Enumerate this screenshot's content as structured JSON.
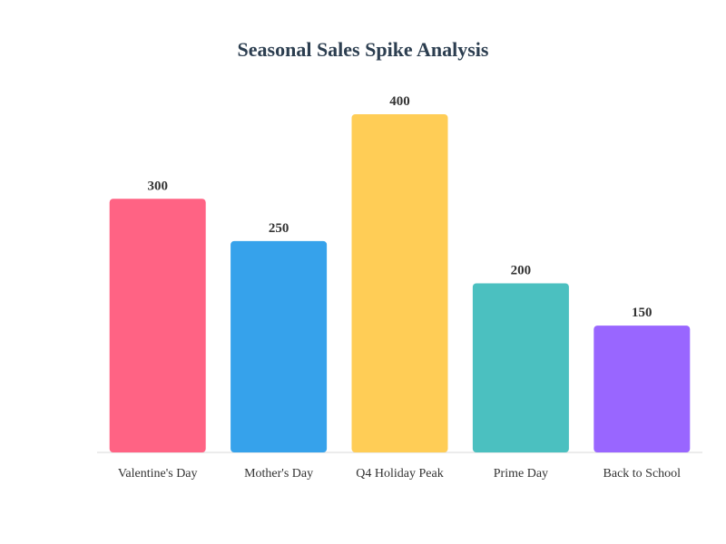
{
  "chart_data": {
    "type": "bar",
    "title": "Seasonal Sales Spike Analysis",
    "categories": [
      "Valentine's Day",
      "Mother's Day",
      "Q4 Holiday Peak",
      "Prime Day",
      "Back to School"
    ],
    "values": [
      300,
      250,
      400,
      200,
      150
    ],
    "colors": [
      "#ff6384",
      "#36a2eb",
      "#ffcd56",
      "#4bc0c0",
      "#9966ff"
    ],
    "xlabel": "",
    "ylabel": "",
    "ylim": [
      0,
      400
    ],
    "grid": false,
    "legend": "none",
    "data_labels": true
  }
}
